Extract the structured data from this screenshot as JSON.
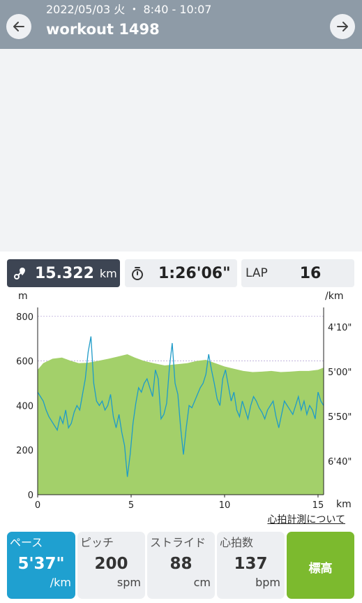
{
  "header": {
    "date_time": "2022/05/03 火 ・ 8:40 - 10:07",
    "title": "workout 1498",
    "back_icon": "arrow-left-icon",
    "forward_icon": "arrow-right-icon"
  },
  "summary": {
    "distance_value": "15.322",
    "distance_unit": "km",
    "time_value": "1:26'06\"",
    "lap_label": "LAP",
    "lap_value": "16"
  },
  "link_heart_rate": "心拍計測について",
  "tabs": [
    {
      "label": "ペース",
      "value": "5'37\"",
      "unit": "/km"
    },
    {
      "label": "ピッチ",
      "value": "200",
      "unit": "spm"
    },
    {
      "label": "ストライド",
      "value": "88",
      "unit": "cm"
    },
    {
      "label": "心拍数",
      "value": "137",
      "unit": "bpm"
    },
    {
      "label": "標高"
    }
  ],
  "colors": {
    "header_bg": "#8e9ba7",
    "elevation_fill": "#a3d06a",
    "pace_line": "#1e9bc8",
    "active_tab": "#1fa0d0",
    "elevation_tab": "#7cba2e"
  },
  "chart_data": {
    "type": "area",
    "left_axis_unit": "m",
    "right_axis_unit": "/km",
    "x_unit": "km",
    "xlim": [
      0,
      15.3
    ],
    "x_ticks": [
      "0",
      "5",
      "10",
      "15"
    ],
    "y_left_ticks": [
      "0",
      "200",
      "400",
      "600",
      "800"
    ],
    "ylim_left": [
      0,
      840
    ],
    "y_right_ticks": [
      "4'10\"",
      "5'00\"",
      "5'50\"",
      "6'40\""
    ],
    "grid": true,
    "series": [
      {
        "kind": "elevation",
        "x": [
          0,
          0.3,
          0.8,
          1.3,
          1.8,
          2.2,
          2.7,
          3.2,
          3.8,
          4.3,
          4.8,
          5.2,
          5.7,
          6.2,
          6.8,
          7.4,
          8.0,
          8.5,
          9.0,
          9.5,
          10.0,
          10.5,
          11.0,
          11.5,
          12.0,
          12.5,
          13.0,
          13.5,
          14.0,
          14.5,
          15.0,
          15.3
        ],
        "values": [
          560,
          590,
          610,
          615,
          600,
          590,
          592,
          600,
          610,
          620,
          630,
          615,
          600,
          590,
          580,
          585,
          590,
          600,
          605,
          590,
          575,
          565,
          555,
          550,
          552,
          555,
          550,
          552,
          555,
          555,
          560,
          570
        ]
      },
      {
        "kind": "pace",
        "x": [
          0,
          0.15,
          0.3,
          0.45,
          0.6,
          0.75,
          0.9,
          1.05,
          1.2,
          1.35,
          1.5,
          1.65,
          1.8,
          1.95,
          2.1,
          2.25,
          2.4,
          2.55,
          2.7,
          2.85,
          3.0,
          3.15,
          3.3,
          3.45,
          3.6,
          3.75,
          3.9,
          4.05,
          4.2,
          4.35,
          4.5,
          4.65,
          4.8,
          4.95,
          5.1,
          5.25,
          5.4,
          5.55,
          5.7,
          5.85,
          6.0,
          6.15,
          6.3,
          6.45,
          6.6,
          6.75,
          6.9,
          7.05,
          7.2,
          7.35,
          7.5,
          7.65,
          7.8,
          7.95,
          8.1,
          8.25,
          8.4,
          8.55,
          8.7,
          8.85,
          9.0,
          9.15,
          9.3,
          9.45,
          9.6,
          9.75,
          9.9,
          10.05,
          10.2,
          10.35,
          10.5,
          10.65,
          10.8,
          10.95,
          11.1,
          11.25,
          11.4,
          11.55,
          11.7,
          11.85,
          12.0,
          12.15,
          12.3,
          12.45,
          12.6,
          12.75,
          12.9,
          13.05,
          13.2,
          13.35,
          13.5,
          13.65,
          13.8,
          13.95,
          14.1,
          14.25,
          14.4,
          14.55,
          14.7,
          14.85,
          15.0,
          15.15,
          15.3
        ],
        "values": [
          460,
          440,
          420,
          380,
          350,
          330,
          310,
          290,
          350,
          320,
          380,
          300,
          320,
          370,
          400,
          380,
          450,
          520,
          640,
          710,
          500,
          420,
          400,
          420,
          380,
          400,
          450,
          350,
          300,
          360,
          280,
          220,
          80,
          180,
          320,
          410,
          480,
          460,
          500,
          520,
          480,
          440,
          560,
          520,
          340,
          360,
          410,
          570,
          680,
          500,
          450,
          300,
          180,
          300,
          400,
          390,
          420,
          450,
          480,
          500,
          540,
          630,
          560,
          500,
          430,
          400,
          520,
          560,
          490,
          420,
          460,
          380,
          350,
          420,
          380,
          340,
          400,
          440,
          420,
          390,
          370,
          340,
          380,
          400,
          420,
          350,
          300,
          360,
          420,
          400,
          380,
          360,
          400,
          440,
          380,
          420,
          360,
          400,
          380,
          340,
          460,
          420,
          400
        ]
      }
    ]
  }
}
